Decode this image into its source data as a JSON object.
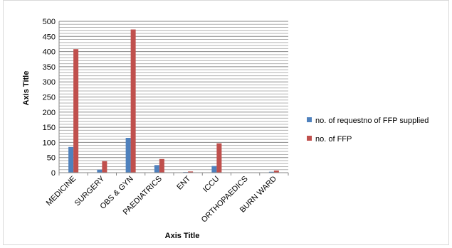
{
  "chart_data": {
    "type": "bar",
    "title": "",
    "xlabel": "Axis Title",
    "ylabel": "Axis Title",
    "ylim": [
      0,
      500
    ],
    "y_major_ticks": [
      0,
      50,
      100,
      150,
      200,
      250,
      300,
      350,
      400,
      450,
      500
    ],
    "y_minor_step": 10,
    "grid": true,
    "legend_position": "right",
    "categories": [
      "MEDICINE",
      "SURGERY",
      "OBS & GYN",
      "PAEDIATRICS",
      "ENT",
      "ICCU",
      "ORTHOPAEDICS",
      "BURN WARD"
    ],
    "series": [
      {
        "name": "no. of requestno of FFP supplied",
        "color": "#4f81bd",
        "values": [
          85,
          10,
          115,
          25,
          2,
          22,
          1,
          3
        ]
      },
      {
        "name": "no. of FFP",
        "color": "#c0504d",
        "values": [
          408,
          38,
          473,
          45,
          4,
          97,
          1,
          7
        ]
      }
    ]
  }
}
